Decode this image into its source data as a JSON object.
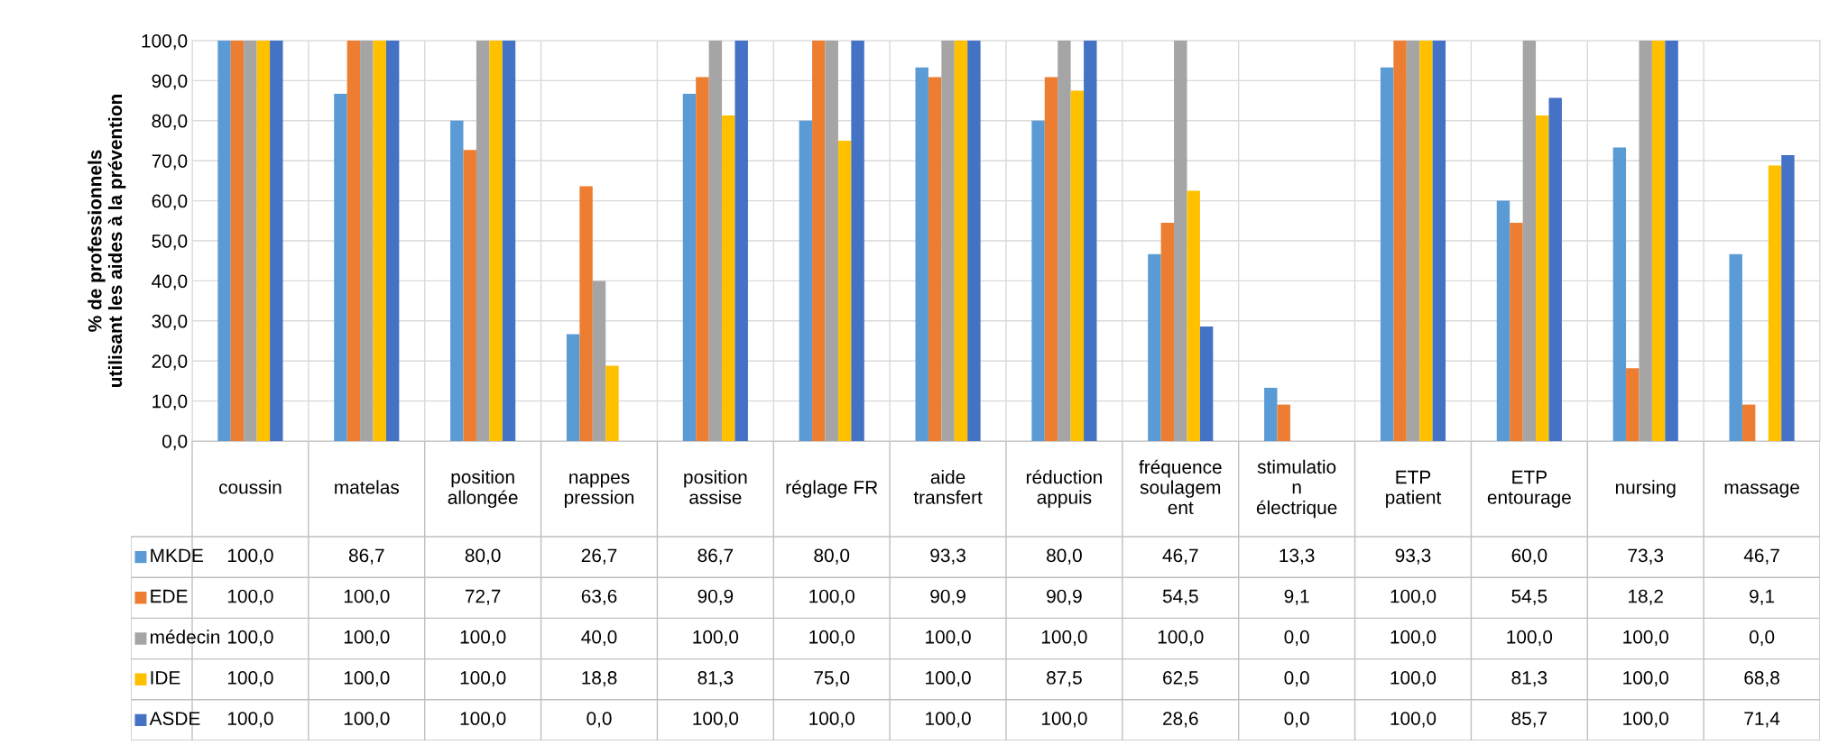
{
  "chart_data": {
    "type": "bar",
    "ylabel": "% de professionnels\nutilisant les aides à la prévention",
    "categories": [
      "coussin",
      "matelas",
      "position\nallongée",
      "nappes\npression",
      "position\nassise",
      "réglage FR",
      "aide\ntransfert",
      "réduction\nappuis",
      "fréquence\nsoulagem\nent",
      "stimulatio\nn\nélectrique",
      "ETP\npatient",
      "ETP\nentourage",
      "nursing",
      "massage"
    ],
    "series": [
      {
        "name": "MKDE",
        "color": "#5b9bd5",
        "values": [
          100.0,
          86.7,
          80.0,
          26.7,
          86.7,
          80.0,
          93.3,
          80.0,
          46.7,
          13.3,
          93.3,
          60.0,
          73.3,
          46.7
        ],
        "value_labels": [
          "100,0",
          "86,7",
          "80,0",
          "26,7",
          "86,7",
          "80,0",
          "93,3",
          "80,0",
          "46,7",
          "13,3",
          "93,3",
          "60,0",
          "73,3",
          "46,7"
        ]
      },
      {
        "name": "EDE",
        "color": "#ed7d31",
        "values": [
          100.0,
          100.0,
          72.7,
          63.6,
          90.9,
          100.0,
          90.9,
          90.9,
          54.5,
          9.1,
          100.0,
          54.5,
          18.2,
          9.1
        ],
        "value_labels": [
          "100,0",
          "100,0",
          "72,7",
          "63,6",
          "90,9",
          "100,0",
          "90,9",
          "90,9",
          "54,5",
          "9,1",
          "100,0",
          "54,5",
          "18,2",
          "9,1"
        ]
      },
      {
        "name": "médecin",
        "color": "#a5a5a5",
        "values": [
          100.0,
          100.0,
          100.0,
          40.0,
          100.0,
          100.0,
          100.0,
          100.0,
          100.0,
          0.0,
          100.0,
          100.0,
          100.0,
          0.0
        ],
        "value_labels": [
          "100,0",
          "100,0",
          "100,0",
          "40,0",
          "100,0",
          "100,0",
          "100,0",
          "100,0",
          "100,0",
          "0,0",
          "100,0",
          "100,0",
          "100,0",
          "0,0"
        ]
      },
      {
        "name": "IDE",
        "color": "#ffc000",
        "values": [
          100.0,
          100.0,
          100.0,
          18.8,
          81.3,
          75.0,
          100.0,
          87.5,
          62.5,
          0.0,
          100.0,
          81.3,
          100.0,
          68.8
        ],
        "value_labels": [
          "100,0",
          "100,0",
          "100,0",
          "18,8",
          "81,3",
          "75,0",
          "100,0",
          "87,5",
          "62,5",
          "0,0",
          "100,0",
          "81,3",
          "100,0",
          "68,8"
        ]
      },
      {
        "name": "ASDE",
        "color": "#4472c4",
        "values": [
          100.0,
          100.0,
          100.0,
          0.0,
          100.0,
          100.0,
          100.0,
          100.0,
          28.6,
          0.0,
          100.0,
          85.7,
          100.0,
          71.4
        ],
        "value_labels": [
          "100,0",
          "100,0",
          "100,0",
          "0,0",
          "100,0",
          "100,0",
          "100,0",
          "100,0",
          "28,6",
          "0,0",
          "100,0",
          "85,7",
          "100,0",
          "71,4"
        ]
      }
    ],
    "ylim": [
      0,
      100
    ],
    "yticks": [
      {
        "value": 0,
        "label": "0,0"
      },
      {
        "value": 10,
        "label": "10,0"
      },
      {
        "value": 20,
        "label": "20,0"
      },
      {
        "value": 30,
        "label": "30,0"
      },
      {
        "value": 40,
        "label": "40,0"
      },
      {
        "value": 50,
        "label": "50,0"
      },
      {
        "value": 60,
        "label": "60,0"
      },
      {
        "value": 70,
        "label": "70,0"
      },
      {
        "value": 80,
        "label": "80,0"
      },
      {
        "value": 90,
        "label": "90,0"
      },
      {
        "value": 100,
        "label": "100,0"
      }
    ],
    "grid": "y",
    "legend": "bottom"
  }
}
